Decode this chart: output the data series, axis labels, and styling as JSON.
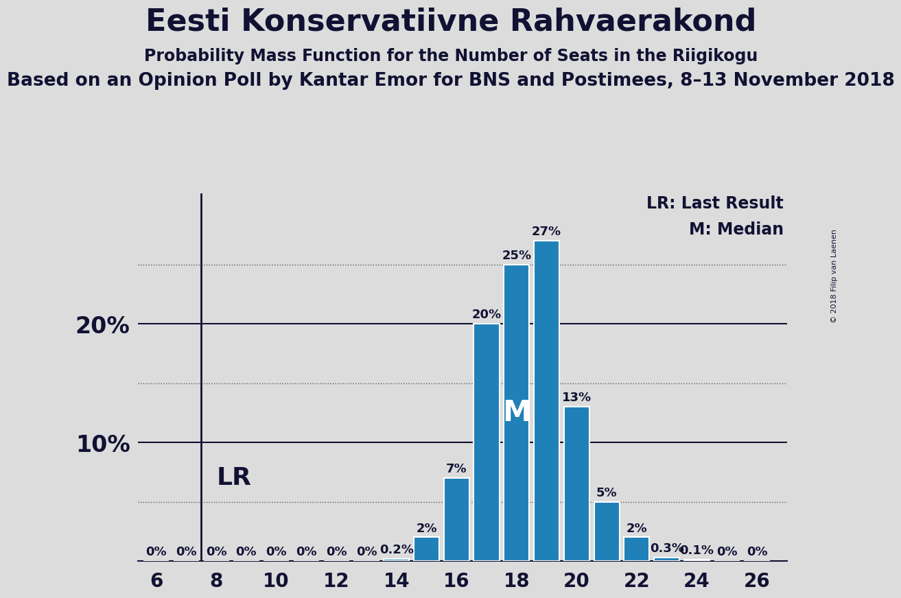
{
  "title": "Eesti Konservatiivne Rahvaerakond",
  "subtitle1": "Probability Mass Function for the Number of Seats in the Riigikogu",
  "subtitle2": "Based on an Opinion Poll by Kantar Emor for BNS and Postimees, 8–13 November 2018",
  "copyright": "© 2018 Filip van Laenen",
  "seats": [
    6,
    7,
    8,
    9,
    10,
    11,
    12,
    13,
    14,
    15,
    16,
    17,
    18,
    19,
    20,
    21,
    22,
    23,
    24,
    25,
    26
  ],
  "probabilities": [
    0.0,
    0.0,
    0.0,
    0.0,
    0.0,
    0.0,
    0.0,
    0.0,
    0.2,
    2.0,
    7.0,
    20.0,
    25.0,
    27.0,
    13.0,
    5.0,
    2.0,
    0.3,
    0.1,
    0.0,
    0.0
  ],
  "bar_color": "#2080b8",
  "background_color": "#dcdcdc",
  "plot_bg_color": "#dcdcdc",
  "lr_seat": 7,
  "median_seat": 18,
  "xticks": [
    6,
    8,
    10,
    12,
    14,
    16,
    18,
    20,
    22,
    24,
    26
  ],
  "legend_lr": "LR: Last Result",
  "legend_m": "M: Median",
  "title_fontsize": 32,
  "subtitle1_fontsize": 17,
  "subtitle2_fontsize": 19,
  "bar_label_fontsize": 13,
  "axis_tick_fontsize": 20,
  "legend_fontsize": 17,
  "ylabel_fontsize": 24,
  "lr_label_fontsize": 26,
  "m_label_fontsize": 30
}
